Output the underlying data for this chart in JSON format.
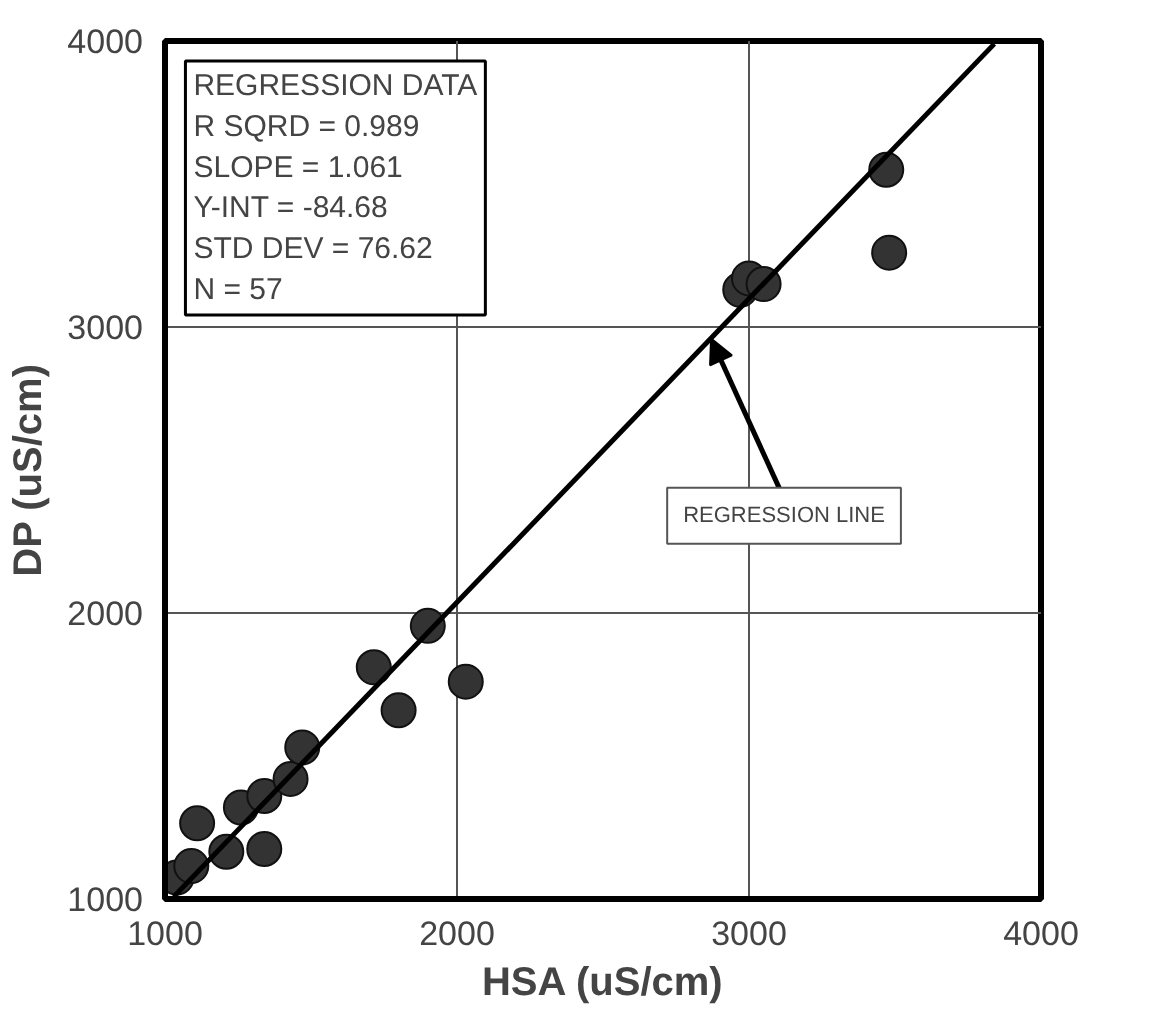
{
  "chart_data": {
    "type": "scatter",
    "xlabel": "HSA (uS/cm)",
    "ylabel": "DP (uS/cm)",
    "xlim": [
      1000,
      4000
    ],
    "ylim": [
      1000,
      4000
    ],
    "xticks": [
      1000,
      2000,
      3000,
      4000
    ],
    "yticks": [
      1000,
      2000,
      3000,
      4000
    ],
    "grid": true,
    "series": [
      {
        "marker": "circle",
        "color": "#333333",
        "x": [
          1040,
          1090,
          1110,
          1210,
          1260,
          1340,
          1340,
          1430,
          1470,
          1715,
          1800,
          1900,
          2030,
          2970,
          3000,
          3050,
          3470,
          3480
        ],
        "values": [
          1075,
          1115,
          1265,
          1165,
          1320,
          1175,
          1360,
          1420,
          1530,
          1810,
          1660,
          1955,
          1760,
          3130,
          3170,
          3150,
          3550,
          3260
        ]
      },
      {
        "type": "line",
        "marker": "none",
        "color": "#000000",
        "x": [
          1030,
          3840
        ],
        "values": [
          1008,
          3990
        ]
      }
    ],
    "annotations": [
      "REGRESSION DATA\nR SQRD  =  0.989\nSLOPE    =  1.061\nY-INT      =  -84.68\nSTD DEV =  76.62\nN            =  57",
      {
        "text": "REGRESSION LINE",
        "x": 2870,
        "y": 2960
      }
    ]
  }
}
